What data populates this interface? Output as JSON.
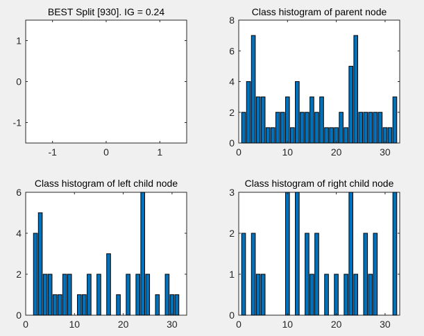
{
  "colors": {
    "bar": "#0072BD",
    "bar_edge": "#000000",
    "background": "#f0f0f0",
    "axes": "#ffffff"
  },
  "chart_data": [
    {
      "type": "empty",
      "title": "BEST Split [930]. IG = 0.24",
      "xlim": [
        -1.5,
        1.5
      ],
      "ylim": [
        -1.5,
        1.5
      ],
      "xticks": [
        -1,
        0,
        1
      ],
      "yticks": [
        -1,
        0,
        1
      ],
      "x": [],
      "values": []
    },
    {
      "type": "bar",
      "title": "Class histogram of parent node",
      "xlim": [
        0,
        33
      ],
      "ylim": [
        0,
        8
      ],
      "xticks": [
        0,
        10,
        20,
        30
      ],
      "yticks": [
        0,
        2,
        4,
        6,
        8
      ],
      "x": [
        1,
        2,
        3,
        4,
        5,
        6,
        7,
        8,
        9,
        10,
        11,
        12,
        13,
        14,
        15,
        16,
        17,
        18,
        19,
        20,
        21,
        22,
        23,
        24,
        25,
        26,
        27,
        28,
        29,
        30,
        31,
        32
      ],
      "values": [
        2,
        4,
        7,
        3,
        3,
        1,
        1,
        2,
        2,
        3,
        1,
        4,
        2,
        2,
        3,
        2,
        3,
        1,
        1,
        1,
        2,
        1,
        5,
        7,
        2,
        2,
        2,
        2,
        2,
        1,
        1,
        3
      ]
    },
    {
      "type": "bar",
      "title": "Class histogram of left child node",
      "xlim": [
        0,
        33
      ],
      "ylim": [
        0,
        6
      ],
      "xticks": [
        0,
        10,
        20,
        30
      ],
      "yticks": [
        0,
        2,
        4,
        6
      ],
      "x": [
        2,
        3,
        4,
        5,
        6,
        7,
        8,
        9,
        11,
        12,
        13,
        15,
        17,
        19,
        21,
        23,
        24,
        25,
        27,
        29,
        30,
        31
      ],
      "values": [
        4,
        5,
        2,
        2,
        1,
        1,
        2,
        2,
        1,
        1,
        2,
        2,
        3,
        1,
        2,
        2,
        6,
        2,
        1,
        2,
        1,
        1
      ]
    },
    {
      "type": "bar",
      "title": "Class histogram of right child node",
      "xlim": [
        0,
        33
      ],
      "ylim": [
        0,
        3
      ],
      "xticks": [
        0,
        10,
        20,
        30
      ],
      "yticks": [
        0,
        1,
        2,
        3
      ],
      "x": [
        1,
        3,
        4,
        5,
        10,
        12,
        14,
        15,
        16,
        18,
        20,
        22,
        23,
        24,
        26,
        27,
        28,
        32
      ],
      "values": [
        2,
        2,
        1,
        1,
        3,
        3,
        2,
        1,
        2,
        1,
        1,
        1,
        3,
        1,
        2,
        1,
        2,
        3
      ]
    }
  ]
}
